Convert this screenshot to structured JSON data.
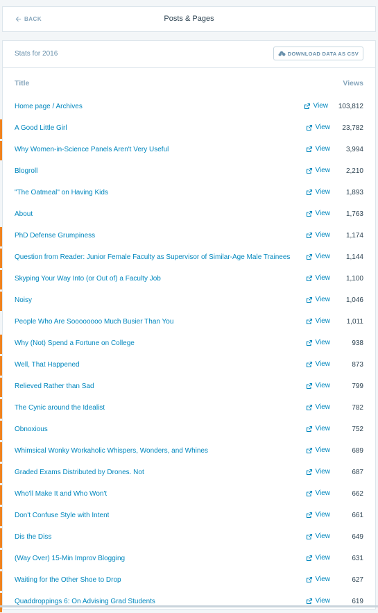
{
  "header": {
    "back_label": "BACK",
    "title": "Posts & Pages"
  },
  "stats": {
    "period_label": "Stats for 2016",
    "download_label": "DOWNLOAD DATA AS CSV"
  },
  "table": {
    "col_title": "Title",
    "col_views": "Views",
    "view_label": "View",
    "rows": [
      {
        "title": "Home page / Archives",
        "views": "103,812",
        "accent": false
      },
      {
        "title": "A Good Little Girl",
        "views": "23,782",
        "accent": true
      },
      {
        "title": "Why Women-in-Science Panels Aren't Very Useful",
        "views": "3,994",
        "accent": true
      },
      {
        "title": "Blogroll",
        "views": "2,210",
        "accent": false
      },
      {
        "title": "\"The Oatmeal\" on Having Kids",
        "views": "1,893",
        "accent": false
      },
      {
        "title": "About",
        "views": "1,763",
        "accent": false
      },
      {
        "title": "PhD Defense Grumpiness",
        "views": "1,174",
        "accent": true
      },
      {
        "title": "Question from Reader: Junior Female Faculty as Supervisor of Similar-Age Male Trainees",
        "views": "1,144",
        "accent": true
      },
      {
        "title": "Skyping Your Way Into (or Out of) a Faculty Job",
        "views": "1,100",
        "accent": true
      },
      {
        "title": "Noisy",
        "views": "1,046",
        "accent": true
      },
      {
        "title": "People Who Are Soooooooo Much Busier Than You",
        "views": "1,011",
        "accent": false
      },
      {
        "title": "Why (Not) Spend a Fortune on College",
        "views": "938",
        "accent": true
      },
      {
        "title": "Well, That Happened",
        "views": "873",
        "accent": true
      },
      {
        "title": "Relieved Rather than Sad",
        "views": "799",
        "accent": true
      },
      {
        "title": "The Cynic around the Idealist",
        "views": "782",
        "accent": true
      },
      {
        "title": "Obnoxious",
        "views": "752",
        "accent": true
      },
      {
        "title": "Whimsical Wonky Workaholic Whispers, Wonders, and Whines",
        "views": "689",
        "accent": true
      },
      {
        "title": "Graded Exams Distributed by Drones. Not",
        "views": "687",
        "accent": true
      },
      {
        "title": "Who'll Make It and Who Won't",
        "views": "662",
        "accent": true
      },
      {
        "title": "Don't Confuse Style with Intent",
        "views": "661",
        "accent": true
      },
      {
        "title": "Dis the Diss",
        "views": "649",
        "accent": true
      },
      {
        "title": "(Way Over) 15-Min Improv Blogging",
        "views": "631",
        "accent": true
      },
      {
        "title": "Waiting for the Other Shoe to Drop",
        "views": "627",
        "accent": true
      },
      {
        "title": "Quaddroppings 6: On Advising Grad Students",
        "views": "619",
        "accent": true
      }
    ]
  },
  "colors": {
    "link": "#0087be",
    "accent": "#f0821e",
    "muted": "#87a6bc"
  },
  "icons": {
    "back": "arrow-left-icon",
    "download": "cloud-download-icon",
    "view": "external-link-icon"
  }
}
